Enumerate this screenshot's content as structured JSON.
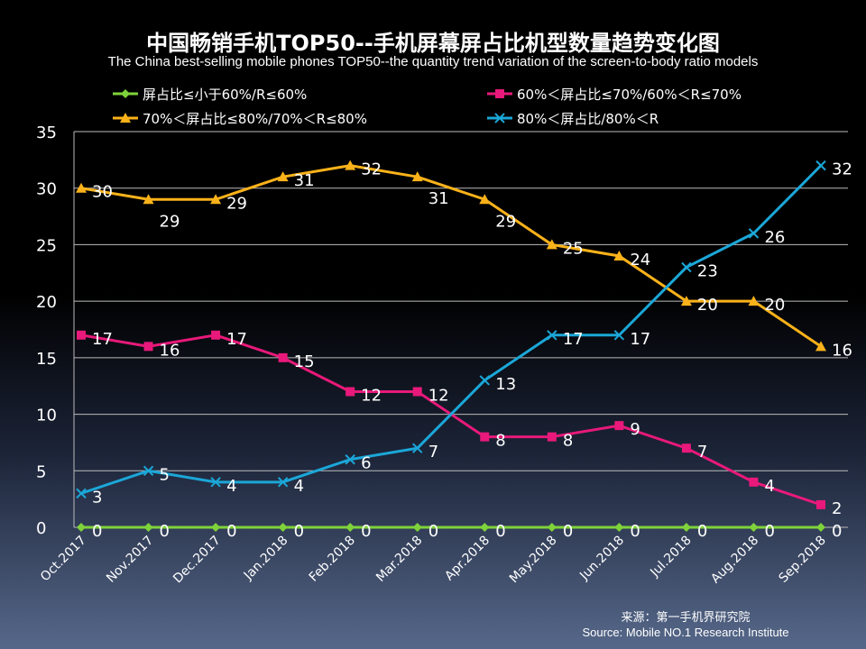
{
  "header": {
    "title": "中国畅销手机TOP50--手机屏幕屏占比机型数量趋势变化图",
    "subtitle": "The China best-selling mobile phones TOP50--the quantity trend variation of the screen-to-body ratio models"
  },
  "source": {
    "cn": "来源：第一手机界研究院",
    "en": "Source: Mobile NO.1 Research Institute"
  },
  "chart_data": {
    "type": "line",
    "categories": [
      "Oct.2017",
      "Nov.2017",
      "Dec.2017",
      "Jan.2018",
      "Feb.2018",
      "Mar.2018",
      "Apr.2018",
      "May.2018",
      "Jun.2018",
      "Jul.2018",
      "Aug.2018",
      "Sep.2018"
    ],
    "ylim": [
      0,
      35
    ],
    "yticks": [
      0,
      5,
      10,
      15,
      20,
      25,
      30,
      35
    ],
    "grid": true,
    "legend": "top",
    "series": [
      {
        "name": "屏占比≤小于60%/R≤60%",
        "color": "#7fd33a",
        "marker": "diamond",
        "values": [
          0,
          0,
          0,
          0,
          0,
          0,
          0,
          0,
          0,
          0,
          0,
          0
        ]
      },
      {
        "name": "60%＜屏占比≤70%/60%＜R≤70%",
        "color": "#e8197a",
        "marker": "square",
        "values": [
          17,
          16,
          17,
          15,
          12,
          12,
          8,
          8,
          9,
          7,
          4,
          2
        ]
      },
      {
        "name": "70%＜屏占比≤80%/70%＜R≤80%",
        "color": "#fbb21a",
        "marker": "triangle",
        "values": [
          30,
          29,
          29,
          31,
          32,
          31,
          29,
          25,
          24,
          20,
          20,
          16
        ]
      },
      {
        "name": "80%＜屏占比/80%＜R",
        "color": "#1ba7d8",
        "marker": "x",
        "values": [
          3,
          5,
          4,
          4,
          6,
          7,
          13,
          17,
          17,
          23,
          26,
          32
        ]
      }
    ]
  }
}
